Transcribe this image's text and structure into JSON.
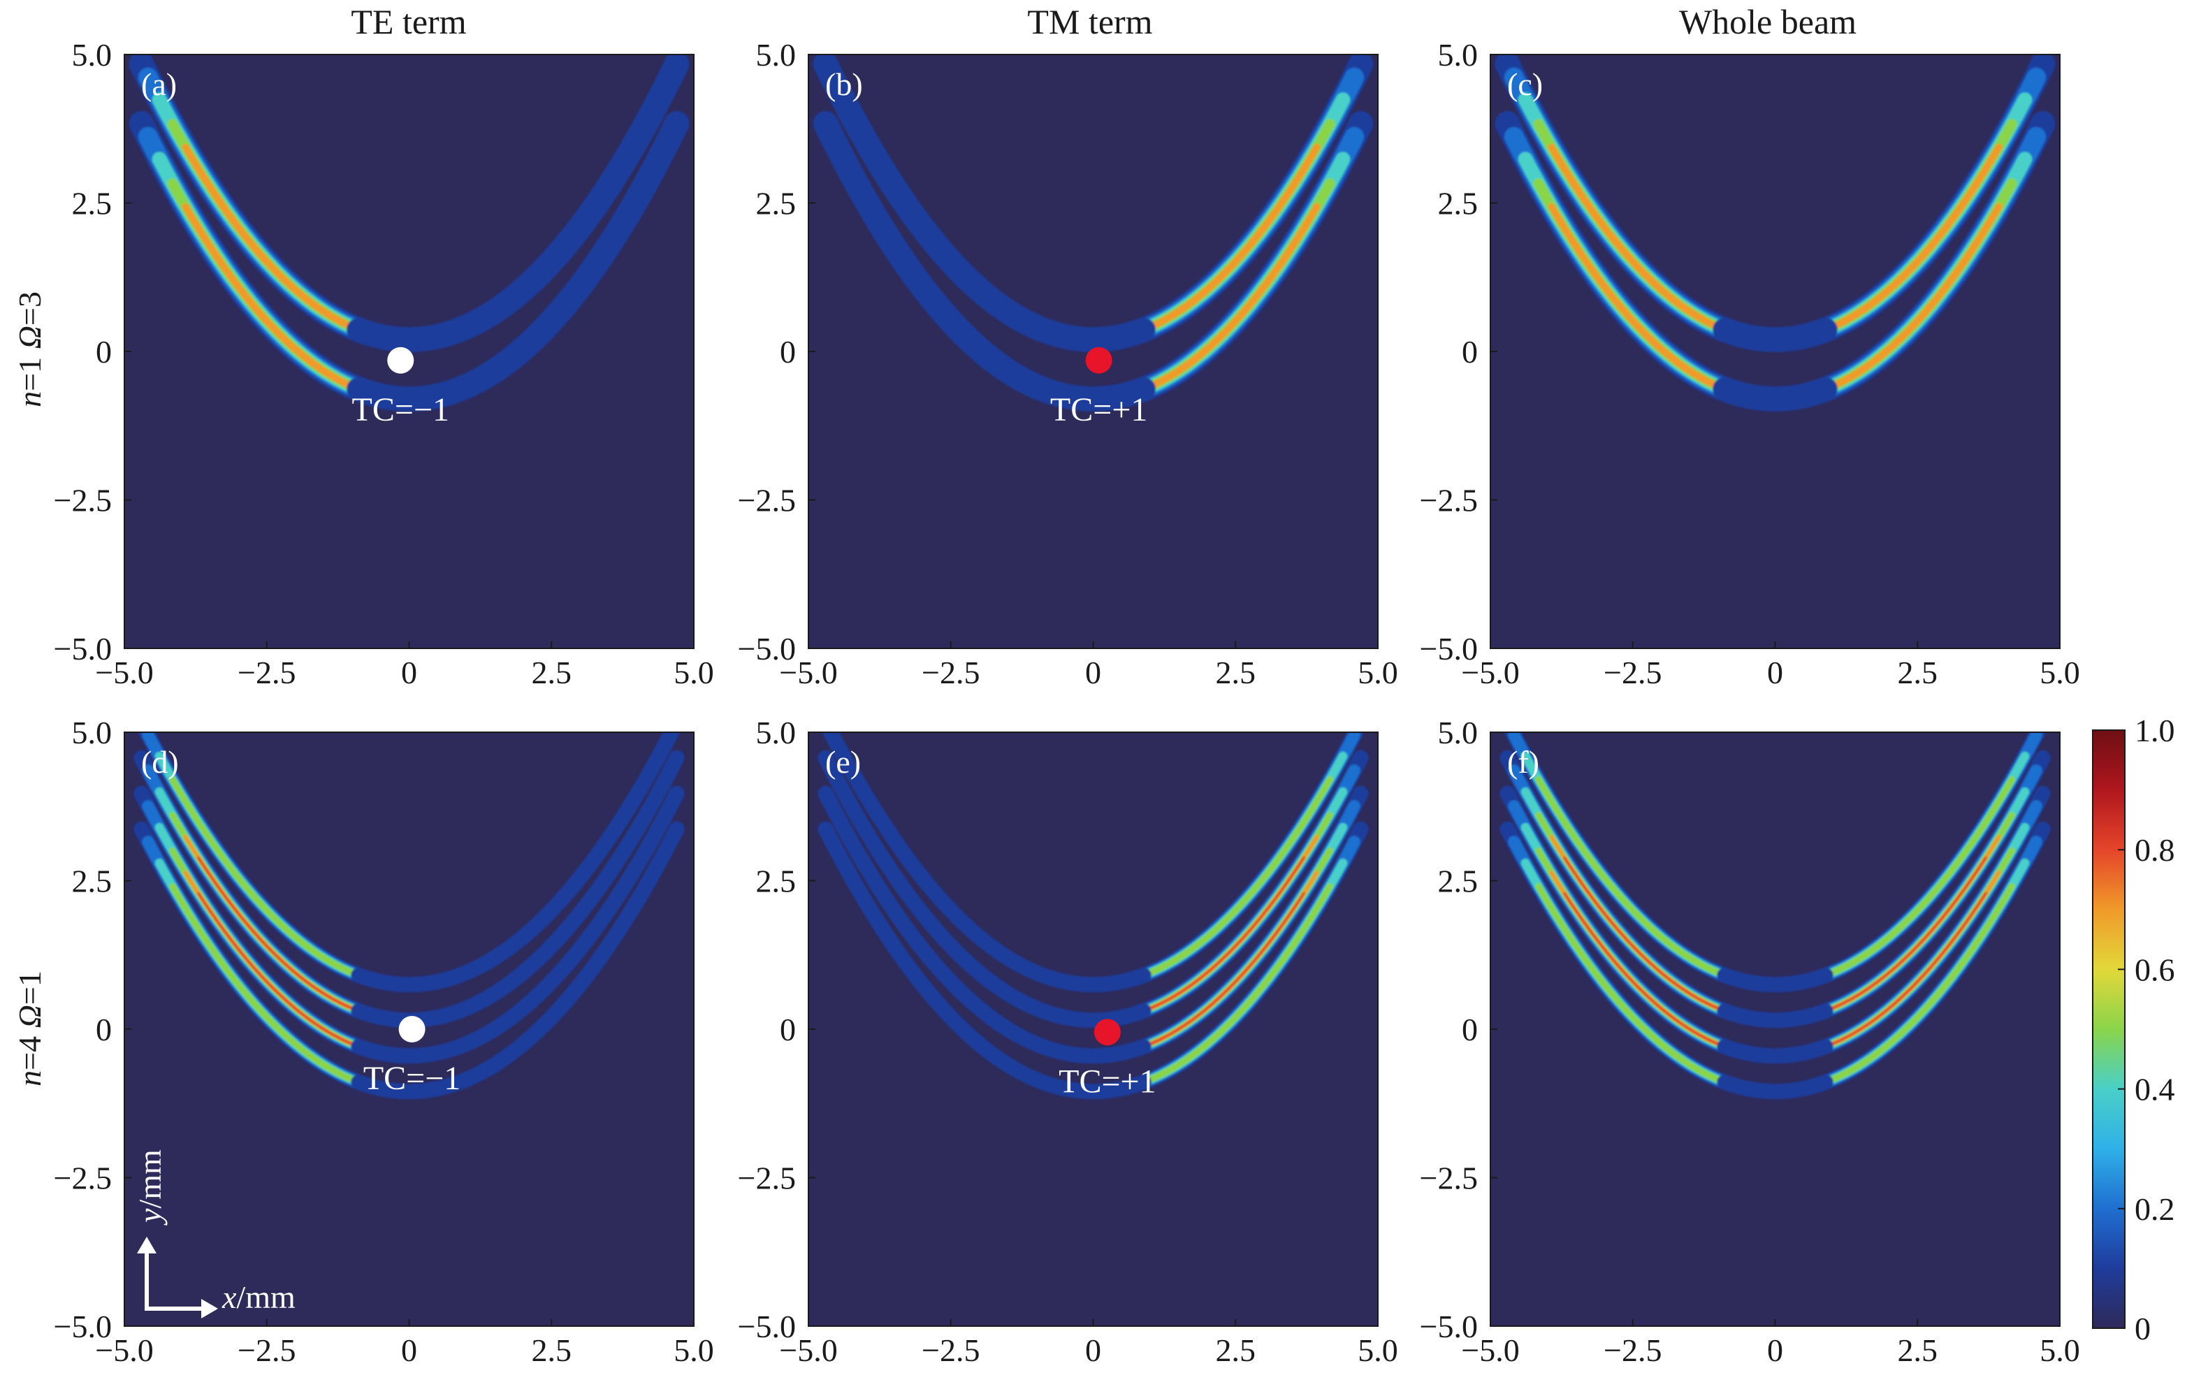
{
  "column_titles": [
    "TE term",
    "TM term",
    "Whole beam"
  ],
  "row_labels": [
    {
      "n_var": "n",
      "n_rest": "=1 ",
      "omega_var": "Ω",
      "omega_rest": "=3"
    },
    {
      "n_var": "n",
      "n_rest": "=4 ",
      "omega_var": "Ω",
      "omega_rest": "=1"
    }
  ],
  "axis_hint": {
    "y_var": "y",
    "y_unit": "/mm",
    "x_var": "x",
    "x_unit": "/mm"
  },
  "colorbar": {
    "ticks": [
      "1.0",
      "0.8",
      "0.6",
      "0.4",
      "0.2",
      "0"
    ],
    "range": [
      0,
      1.0
    ]
  },
  "colors": {
    "background_intensity_zero": "#2e2a5a",
    "marker_white": "#ffffff",
    "marker_red": "#e8142a",
    "colormap": [
      "#2e2a5a",
      "#1f3c9c",
      "#1f6fd0",
      "#2fb0e8",
      "#49d0c8",
      "#8ad44a",
      "#e2d83a",
      "#f09a2a",
      "#e5452a",
      "#b0161e",
      "#6e0f14"
    ]
  },
  "chart_data": {
    "type": "heatmap",
    "xlim": [
      -5.0,
      5.0
    ],
    "ylim": [
      -5.0,
      5.0
    ],
    "x_ticks": [
      "−5.0",
      "−2.5",
      "0",
      "2.5",
      "5.0"
    ],
    "y_ticks": [
      "5.0",
      "2.5",
      "0",
      "−2.5",
      "−5.0"
    ],
    "panels": [
      {
        "label": "(a)",
        "row": 0,
        "col": 0,
        "branch_weights": [
          1.0,
          0.22
        ],
        "vertex_y": -0.35,
        "curvature": 0.21,
        "bands": 2,
        "marker": {
          "x": -0.15,
          "y": -0.15,
          "color": "white",
          "text": "TC=−1"
        }
      },
      {
        "label": "(b)",
        "row": 0,
        "col": 1,
        "branch_weights": [
          0.22,
          1.0
        ],
        "vertex_y": -0.35,
        "curvature": 0.21,
        "bands": 2,
        "marker": {
          "x": 0.1,
          "y": -0.15,
          "color": "red",
          "text": "TC=+1"
        }
      },
      {
        "label": "(c)",
        "row": 0,
        "col": 2,
        "branch_weights": [
          1.0,
          1.0
        ],
        "vertex_y": -0.35,
        "curvature": 0.21,
        "bands": 2,
        "marker": null
      },
      {
        "label": "(d)",
        "row": 1,
        "col": 0,
        "branch_weights": [
          1.0,
          0.22
        ],
        "vertex_y": -0.2,
        "curvature": 0.2,
        "bands": 4,
        "marker": {
          "x": 0.05,
          "y": 0.0,
          "color": "white",
          "text": "TC=−1"
        }
      },
      {
        "label": "(e)",
        "row": 1,
        "col": 1,
        "branch_weights": [
          0.22,
          1.0
        ],
        "vertex_y": -0.2,
        "curvature": 0.2,
        "bands": 4,
        "marker": {
          "x": 0.25,
          "y": -0.05,
          "color": "red",
          "text": "TC=+1"
        }
      },
      {
        "label": "(f)",
        "row": 1,
        "col": 2,
        "branch_weights": [
          1.0,
          1.0
        ],
        "vertex_y": -0.2,
        "curvature": 0.2,
        "bands": 4,
        "marker": null
      }
    ]
  }
}
